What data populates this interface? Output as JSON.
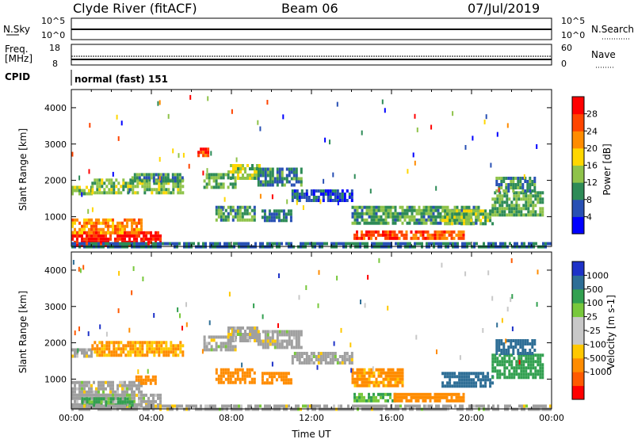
{
  "header": {
    "title": "Clyde River (fitACF)",
    "beam": "Beam 06",
    "date": "07/Jul/2019"
  },
  "noise_panel": {
    "left_label": "N.Sky",
    "right_label": "N.Search",
    "left_ticks": [
      "10^5",
      "10^0"
    ],
    "right_ticks": [
      "10^5",
      "10^0"
    ]
  },
  "freq_panel": {
    "left_label_1": "Freq.",
    "left_label_2": "[MHz]",
    "right_label": "Nave",
    "left_ticks": [
      "18",
      "8"
    ],
    "right_ticks": [
      "60",
      "0"
    ]
  },
  "cpid": {
    "label": "CPID",
    "value": "normal (fast) 151"
  },
  "colors": {
    "power_scale": [
      "#0000ff",
      "#2850b4",
      "#2e8b57",
      "#8fc34a",
      "#ffd700",
      "#ff8c00",
      "#ff4500",
      "#ff0000"
    ],
    "velocity_scale": [
      "#ff0000",
      "#ff5a00",
      "#ff8c00",
      "#ffc800",
      "#c8c8c8",
      "#c8c8c8",
      "#78c83c",
      "#32a050",
      "#2e6e96",
      "#1e32c8"
    ],
    "ground_scatter": "#a0a0a0"
  },
  "chart_data": [
    {
      "type": "heatmap",
      "name": "power-panel",
      "ylabel": "Slant Range [km]",
      "xlabel": "",
      "x_ticks": [
        "00:00",
        "04:00",
        "08:00",
        "12:00",
        "16:00",
        "20:00",
        "00:00"
      ],
      "y_ticks": [
        "1000",
        "2000",
        "3000",
        "4000"
      ],
      "xlim_hours": [
        0,
        24
      ],
      "ylim_km": [
        180,
        4500
      ],
      "colorbar": {
        "label": "Power [dB]",
        "ticks": [
          "4",
          "8",
          "12",
          "16",
          "20",
          "24",
          "28"
        ]
      },
      "regions": [
        {
          "t0": 0.0,
          "t1": 4.4,
          "r0": 200,
          "r1": 600,
          "value": 29
        },
        {
          "t0": 0.0,
          "t1": 3.5,
          "r0": 600,
          "r1": 950,
          "value": 22
        },
        {
          "t0": 0.0,
          "t1": 1.0,
          "r0": 1600,
          "r1": 1850,
          "value": 13
        },
        {
          "t0": 1.0,
          "t1": 5.6,
          "r0": 1700,
          "r1": 2050,
          "value": 14
        },
        {
          "t0": 3.0,
          "t1": 5.5,
          "r0": 2000,
          "r1": 2200,
          "value": 10
        },
        {
          "t0": 6.3,
          "t1": 7.0,
          "r0": 2650,
          "r1": 2900,
          "value": 27
        },
        {
          "t0": 6.6,
          "t1": 8.2,
          "r0": 1800,
          "r1": 2200,
          "value": 12
        },
        {
          "t0": 7.8,
          "t1": 9.4,
          "r0": 2050,
          "r1": 2450,
          "value": 15
        },
        {
          "t0": 9.3,
          "t1": 11.5,
          "r0": 1900,
          "r1": 2350,
          "value": 9
        },
        {
          "t0": 7.2,
          "t1": 9.2,
          "r0": 950,
          "r1": 1300,
          "value": 11
        },
        {
          "t0": 9.5,
          "t1": 11.0,
          "r0": 900,
          "r1": 1200,
          "value": 8
        },
        {
          "t0": 11.0,
          "t1": 14.0,
          "r0": 1450,
          "r1": 1750,
          "value": 6
        },
        {
          "t0": 14.1,
          "t1": 16.2,
          "r0": 380,
          "r1": 620,
          "value": 27
        },
        {
          "t0": 16.1,
          "t1": 19.6,
          "r0": 380,
          "r1": 620,
          "value": 25
        },
        {
          "t0": 14.0,
          "t1": 20.3,
          "r0": 850,
          "r1": 1300,
          "value": 11
        },
        {
          "t0": 18.5,
          "t1": 21.0,
          "r0": 800,
          "r1": 1200,
          "value": 14
        },
        {
          "t0": 21.0,
          "t1": 23.5,
          "r0": 1050,
          "r1": 1700,
          "value": 12
        },
        {
          "t0": 21.2,
          "t1": 23.2,
          "r0": 1700,
          "r1": 2100,
          "value": 10
        },
        {
          "t0": 0.0,
          "t1": 24.0,
          "r0": 180,
          "r1": 300,
          "value": 8
        }
      ]
    },
    {
      "type": "heatmap",
      "name": "velocity-panel",
      "ylabel": "Slant Range [km]",
      "xlabel": "Time UT",
      "x_ticks": [
        "00:00",
        "04:00",
        "08:00",
        "12:00",
        "16:00",
        "20:00",
        "00:00"
      ],
      "y_ticks": [
        "1000",
        "2000",
        "3000",
        "4000"
      ],
      "xlim_hours": [
        0,
        24
      ],
      "ylim_km": [
        180,
        4500
      ],
      "colorbar": {
        "label": "Velocity [m s-1]",
        "ticks": [
          "1000",
          "500",
          "100",
          "25",
          "-25",
          "-100",
          "-500",
          "-1000"
        ]
      },
      "regions": [
        {
          "t0": 0.0,
          "t1": 4.4,
          "r0": 200,
          "r1": 600,
          "value": 0
        },
        {
          "t0": 0.5,
          "t1": 3.0,
          "r0": 250,
          "r1": 500,
          "value": 150
        },
        {
          "t0": 0.0,
          "t1": 3.5,
          "r0": 600,
          "r1": 950,
          "value": 0
        },
        {
          "t0": 0.0,
          "t1": 1.0,
          "r0": 1600,
          "r1": 1850,
          "value": 0
        },
        {
          "t0": 1.0,
          "t1": 5.6,
          "r0": 1700,
          "r1": 2050,
          "value": -120
        },
        {
          "t0": 6.6,
          "t1": 8.2,
          "r0": 1800,
          "r1": 2200,
          "value": 0
        },
        {
          "t0": 7.8,
          "t1": 9.4,
          "r0": 2050,
          "r1": 2450,
          "value": 0
        },
        {
          "t0": 9.3,
          "t1": 11.5,
          "r0": 1900,
          "r1": 2350,
          "value": 0
        },
        {
          "t0": 7.2,
          "t1": 9.2,
          "r0": 950,
          "r1": 1300,
          "value": -300
        },
        {
          "t0": 9.5,
          "t1": 11.0,
          "r0": 900,
          "r1": 1200,
          "value": -250
        },
        {
          "t0": 3.2,
          "t1": 4.2,
          "r0": 900,
          "r1": 1100,
          "value": -300
        },
        {
          "t0": 11.0,
          "t1": 14.0,
          "r0": 1450,
          "r1": 1750,
          "value": 0
        },
        {
          "t0": 14.1,
          "t1": 16.2,
          "r0": 380,
          "r1": 620,
          "value": 120
        },
        {
          "t0": 16.1,
          "t1": 19.6,
          "r0": 380,
          "r1": 620,
          "value": -300
        },
        {
          "t0": 14.0,
          "t1": 16.5,
          "r0": 850,
          "r1": 1300,
          "value": -150
        },
        {
          "t0": 18.5,
          "t1": 21.0,
          "r0": 800,
          "r1": 1200,
          "value": 600
        },
        {
          "t0": 21.0,
          "t1": 23.5,
          "r0": 1050,
          "r1": 1700,
          "value": 300
        },
        {
          "t0": 21.2,
          "t1": 23.2,
          "r0": 1700,
          "r1": 2100,
          "value": 700
        },
        {
          "t0": 0.0,
          "t1": 24.0,
          "r0": 180,
          "r1": 300,
          "value": 0
        }
      ]
    }
  ]
}
